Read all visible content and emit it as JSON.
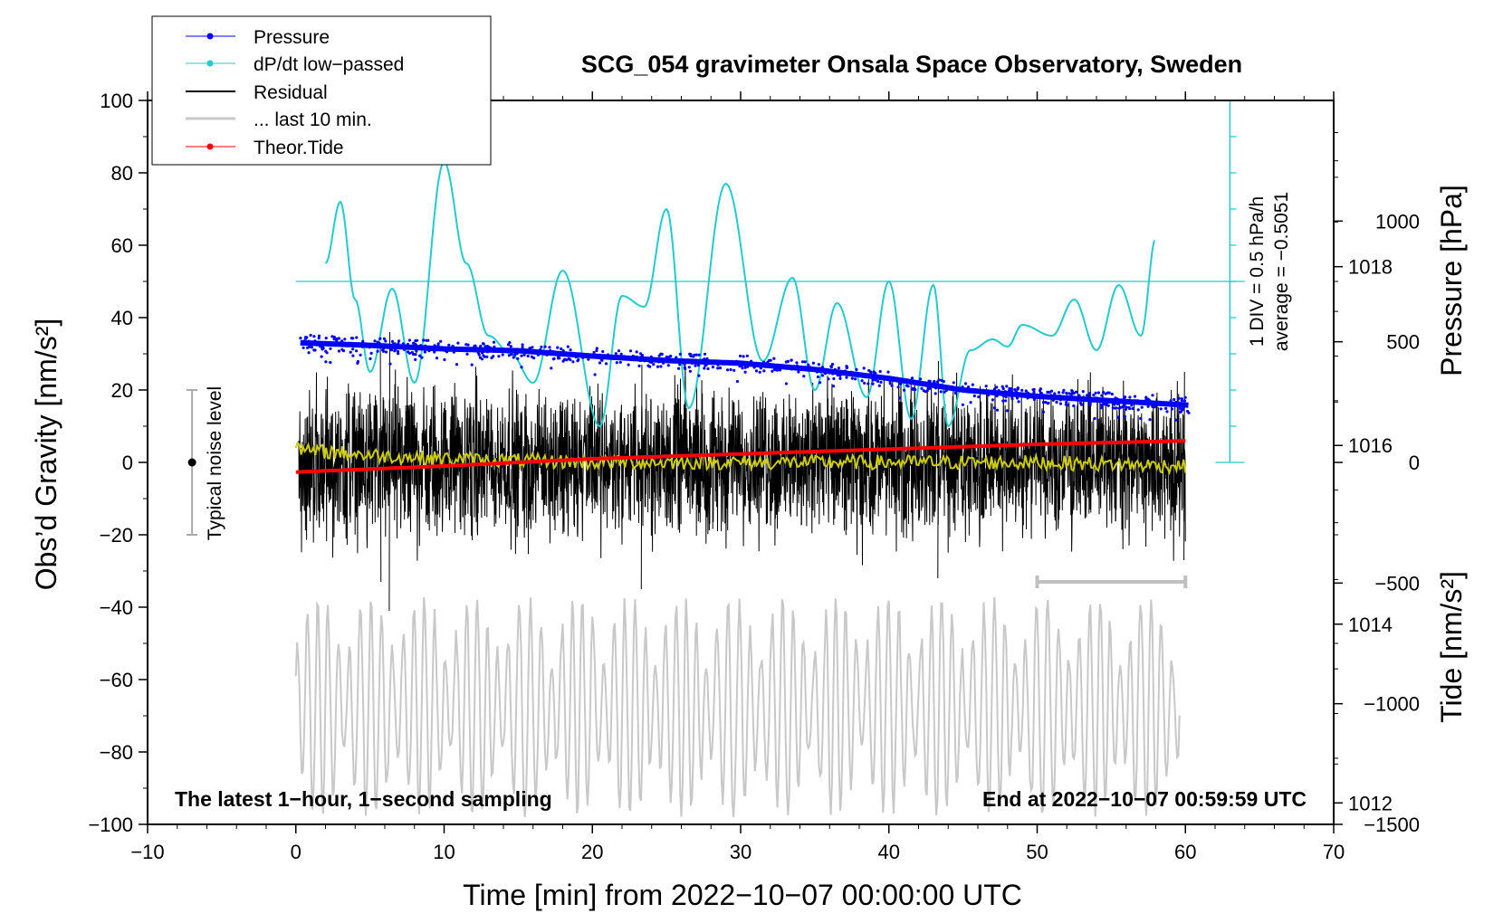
{
  "chart_data": {
    "type": "line",
    "title": "SCG_054 gravimeter Onsala Space Observatory, Sweden",
    "xlabel": "Time [min] from 2022−10−07 00:00:00 UTC",
    "ylabel_left": "Obs’d Gravity [nm/s²]",
    "ylabel_right_pressure": "Pressure [hPa]",
    "ylabel_right_tide": "Tide [nm/s²]",
    "xlim": [
      -10,
      70
    ],
    "ylim": [
      -100,
      100
    ],
    "x_ticks": [
      -10,
      0,
      10,
      20,
      30,
      40,
      50,
      60,
      70
    ],
    "x_tick_labels": [
      "−10",
      "0",
      "10",
      "20",
      "30",
      "40",
      "50",
      "60",
      "70"
    ],
    "y_ticks": [
      100,
      80,
      60,
      40,
      20,
      0,
      -20,
      -40,
      -60,
      -80,
      -100
    ],
    "y_tick_labels": [
      "100",
      "80",
      "60",
      "40",
      "20",
      "0",
      "−20",
      "−40",
      "−60",
      "−80",
      "−100"
    ],
    "pressure_axis": {
      "ylim": [
        1011.76,
        1019.86
      ],
      "ticks": [
        1012,
        1014,
        1016,
        1018
      ],
      "tick_labels": [
        "1012",
        "1014",
        "1016",
        "1018"
      ]
    },
    "tide_axis": {
      "ylim": [
        -1500,
        1500
      ],
      "ticks": [
        1000,
        500,
        0,
        -500,
        -1000,
        -1500
      ],
      "tick_labels": [
        "1000",
        "500",
        "0",
        "−500",
        "−1000",
        "−1500"
      ]
    },
    "dpdt_scale": {
      "label_div": "1 DIV = 0.5 hPa/h",
      "label_avg": "average = −0.5051",
      "x": 63,
      "y_range": [
        0,
        100
      ],
      "average_line_y": 50
    },
    "noise_bar": {
      "label": "Typical noise level",
      "x": -7,
      "y_range": [
        -20,
        20
      ],
      "center": 0
    },
    "last10_bar": {
      "x_range": [
        50,
        60
      ],
      "y": -33
    },
    "notes": {
      "left": "The latest 1−hour, 1−second sampling",
      "right": "End at 2022−10−07 00:59:59 UTC"
    },
    "legend": [
      {
        "label": "Pressure",
        "color": "#0000ff",
        "marker": "dot"
      },
      {
        "label": "dP/dt low−passed",
        "color": "#22cccc",
        "marker": "dot"
      },
      {
        "label": "Residual",
        "color": "#000000",
        "marker": "none"
      },
      {
        "label": "... last 10 min.",
        "color": "#c8c8c8",
        "marker": "none"
      },
      {
        "label": "Theor.Tide",
        "color": "#ff0000",
        "marker": "dot"
      }
    ],
    "series": [
      {
        "name": "Pressure",
        "axis": "pressure",
        "color": "#0000ff",
        "x": [
          0,
          5,
          10,
          15,
          20,
          25,
          30,
          35,
          40,
          45,
          50,
          55,
          60.3
        ],
        "values": [
          1017.15,
          1017.12,
          1017.08,
          1017.06,
          1017.0,
          1016.95,
          1016.92,
          1016.85,
          1016.75,
          1016.62,
          1016.55,
          1016.5,
          1016.45
        ]
      },
      {
        "name": "dP/dt low-passed",
        "axis": "left",
        "color": "#22cccc",
        "x": [
          2,
          3,
          4,
          5,
          6.5,
          8,
          10,
          11.5,
          13,
          14.5,
          16,
          18,
          20.5,
          22,
          23.5,
          25,
          26.5,
          29,
          31.5,
          33.5,
          35,
          36.5,
          38.5,
          40,
          41.5,
          43,
          44,
          45.5,
          47,
          48,
          49,
          51,
          52.5,
          54,
          55.5,
          57,
          58
        ],
        "values": [
          55,
          72,
          45,
          25,
          48,
          22,
          83,
          55,
          35,
          30,
          22,
          53,
          10,
          46,
          43,
          70,
          15,
          77,
          28,
          51,
          20,
          44,
          18,
          50,
          12,
          49,
          10,
          31,
          34,
          32,
          38,
          35,
          45,
          31,
          49,
          35,
          62
        ]
      },
      {
        "name": "Residual",
        "axis": "left",
        "color": "#000000",
        "x": [
          0,
          60
        ],
        "values": [
          0,
          0
        ],
        "envelope": [
          -30,
          30
        ],
        "peak_min": -41,
        "peak_max": 38
      },
      {
        "name": "Residual smoothed",
        "axis": "left",
        "color": "#cccc00",
        "x": [
          0,
          0.5,
          2,
          5,
          10,
          20,
          30,
          40,
          50,
          60
        ],
        "values": [
          6,
          3,
          3,
          2,
          1,
          0,
          0,
          0,
          0,
          -1
        ]
      },
      {
        "name": "... last 10 min.",
        "axis": "left",
        "color": "#c8c8c8",
        "x": [
          0,
          60
        ],
        "values": [
          -60,
          -60
        ],
        "envelope": [
          -98,
          -37
        ]
      },
      {
        "name": "Theor.Tide",
        "axis": "tide",
        "color": "#ff0000",
        "x": [
          0,
          10,
          20,
          30,
          40,
          50,
          60.3
        ],
        "values": [
          -40,
          -15,
          15,
          35,
          55,
          75,
          90
        ]
      }
    ]
  }
}
